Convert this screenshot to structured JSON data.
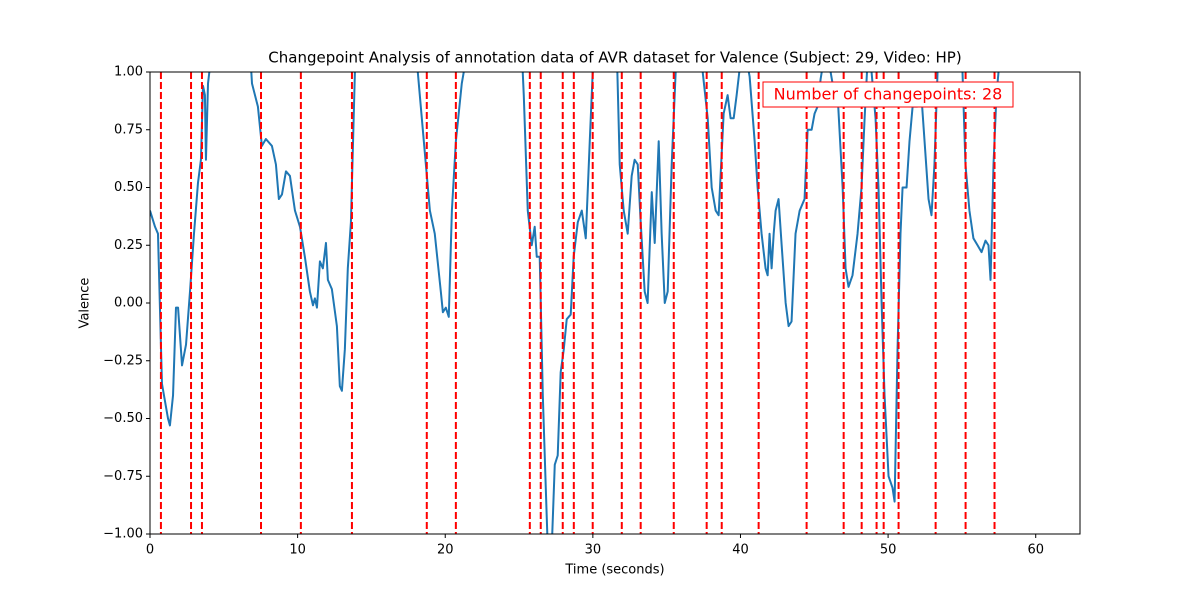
{
  "chart_data": {
    "type": "line",
    "title": "Changepoint Analysis of annotation data of AVR dataset for Valence (Subject: 29, Video: HP)",
    "xlabel": "Time (seconds)",
    "ylabel": "Valence",
    "annotation": "Number of changepoints: 28",
    "xlim": [
      0,
      63
    ],
    "ylim": [
      -1,
      1
    ],
    "xticks": [
      0,
      10,
      20,
      30,
      40,
      50,
      60
    ],
    "yticks": [
      {
        "value": -1,
        "label": "−1.00"
      },
      {
        "value": -0.75,
        "label": "−0.75"
      },
      {
        "value": -0.5,
        "label": "−0.50"
      },
      {
        "value": -0.25,
        "label": "−0.25"
      },
      {
        "value": 0,
        "label": "0.00"
      },
      {
        "value": 0.25,
        "label": "0.25"
      },
      {
        "value": 0.5,
        "label": "0.50"
      },
      {
        "value": 0.75,
        "label": "0.75"
      },
      {
        "value": 1,
        "label": "1.00"
      }
    ],
    "series": [
      {
        "color": "#1f77b4",
        "x": [
          0,
          0.34,
          0.54,
          0.81,
          1.22,
          1.35,
          1.56,
          1.76,
          1.9,
          2.17,
          2.44,
          2.71,
          2.98,
          3.25,
          3.45,
          3.59,
          3.72,
          3.79,
          3.93,
          4.2,
          6.77,
          6.91,
          7.31,
          7.58,
          7.85,
          8.26,
          8.53,
          8.73,
          8.94,
          9.21,
          9.48,
          9.82,
          10.16,
          10.49,
          10.83,
          11.04,
          11.17,
          11.31,
          11.51,
          11.71,
          11.92,
          12.05,
          12.32,
          12.66,
          12.86,
          13.0,
          13.2,
          13.4,
          13.61,
          13.88,
          14.08,
          17.94,
          18.14,
          18.55,
          18.96,
          19.29,
          19.7,
          19.84,
          20.04,
          20.24,
          20.45,
          20.72,
          21.12,
          21.39,
          25.18,
          25.32,
          25.59,
          25.86,
          26.06,
          26.2,
          26.4,
          26.61,
          26.81,
          26.94,
          27.22,
          27.42,
          27.62,
          27.82,
          28.03,
          28.23,
          28.5,
          28.7,
          28.98,
          29.25,
          29.52,
          29.79,
          29.99,
          30.19,
          31.62,
          31.82,
          32.09,
          32.36,
          32.63,
          32.83,
          33.04,
          33.24,
          33.51,
          33.71,
          33.99,
          34.19,
          34.46,
          34.66,
          34.87,
          35.07,
          35.34,
          35.61,
          35.88,
          37.24,
          37.44,
          37.78,
          38.05,
          38.32,
          38.52,
          38.86,
          39.13,
          39.33,
          39.54,
          39.74,
          40.01,
          40.28,
          40.62,
          40.96,
          41.16,
          41.43,
          41.7,
          41.84,
          41.97,
          42.11,
          42.25,
          42.38,
          42.58,
          42.79,
          43.06,
          43.26,
          43.46,
          43.73,
          44.01,
          44.34,
          44.55,
          44.82,
          45.02,
          45.22,
          45.43,
          45.63,
          45.97,
          46.24,
          46.58,
          46.92,
          47.12,
          47.32,
          47.59,
          47.93,
          48.2,
          48.41,
          48.61,
          48.88,
          49.15,
          49.35,
          49.56,
          49.76,
          50.03,
          50.3,
          50.44,
          50.64,
          50.84,
          50.98,
          51.25,
          51.45,
          51.66,
          51.99,
          52.2,
          52.47,
          52.74,
          52.94,
          53.14,
          53.35,
          53.62,
          54.84,
          55.04,
          55.24,
          55.51,
          55.78,
          56.06,
          56.33,
          56.6,
          56.8,
          56.94,
          57.14,
          57.34,
          57.55
        ],
        "values": [
          0.4,
          0.33,
          0.3,
          -0.35,
          -0.5,
          -0.53,
          -0.4,
          -0.02,
          -0.02,
          -0.27,
          -0.18,
          0.05,
          0.3,
          0.52,
          0.62,
          0.94,
          0.9,
          0.62,
          0.95,
          1.1,
          1.1,
          0.95,
          0.85,
          0.68,
          0.71,
          0.68,
          0.6,
          0.45,
          0.47,
          0.57,
          0.55,
          0.4,
          0.33,
          0.2,
          0.05,
          -0.01,
          0.02,
          -0.02,
          0.18,
          0.15,
          0.26,
          0.1,
          0.06,
          -0.1,
          -0.36,
          -0.38,
          -0.2,
          0.15,
          0.35,
          1.0,
          1.1,
          1.1,
          1.0,
          0.7,
          0.4,
          0.3,
          0.05,
          -0.04,
          -0.02,
          -0.06,
          0.4,
          0.7,
          0.95,
          1.05,
          1.1,
          0.9,
          0.4,
          0.25,
          0.33,
          0.2,
          0.2,
          -0.4,
          -0.8,
          -1.05,
          -1.05,
          -0.7,
          -0.66,
          -0.3,
          -0.2,
          -0.07,
          -0.05,
          0.2,
          0.35,
          0.4,
          0.28,
          0.7,
          1.0,
          1.05,
          1.1,
          0.6,
          0.4,
          0.3,
          0.55,
          0.62,
          0.6,
          0.35,
          0.05,
          0.0,
          0.48,
          0.26,
          0.7,
          0.3,
          0.0,
          0.05,
          0.6,
          1.0,
          1.1,
          1.1,
          1.0,
          0.8,
          0.5,
          0.4,
          0.38,
          0.82,
          0.9,
          0.8,
          0.8,
          0.9,
          1.05,
          1.1,
          0.98,
          0.7,
          0.5,
          0.3,
          0.15,
          0.12,
          0.3,
          0.15,
          0.3,
          0.4,
          0.45,
          0.25,
          0.0,
          -0.1,
          -0.08,
          0.3,
          0.4,
          0.45,
          0.75,
          0.75,
          0.82,
          0.85,
          0.97,
          1.05,
          1.05,
          0.95,
          0.9,
          0.5,
          0.15,
          0.07,
          0.12,
          0.3,
          0.5,
          0.8,
          1.05,
          1.0,
          0.8,
          0.5,
          0.0,
          -0.4,
          -0.75,
          -0.8,
          -0.86,
          -0.2,
          0.3,
          0.5,
          0.5,
          0.7,
          0.85,
          0.85,
          0.95,
          0.7,
          0.45,
          0.38,
          0.6,
          1.0,
          1.05,
          1.1,
          1.0,
          0.6,
          0.4,
          0.28,
          0.25,
          0.22,
          0.27,
          0.25,
          0.1,
          0.6,
          0.9,
          1.05
        ]
      }
    ],
    "changepoints": [
      0.74,
      2.78,
      3.52,
      7.52,
      10.22,
      13.68,
      18.75,
      20.72,
      25.73,
      26.47,
      27.96,
      28.71,
      29.99,
      31.96,
      33.24,
      35.48,
      37.71,
      38.73,
      41.23,
      44.48,
      46.99,
      48.21,
      49.22,
      49.7,
      50.71,
      53.22,
      55.25,
      57.21
    ],
    "changepoint_color": "#ff0000"
  }
}
